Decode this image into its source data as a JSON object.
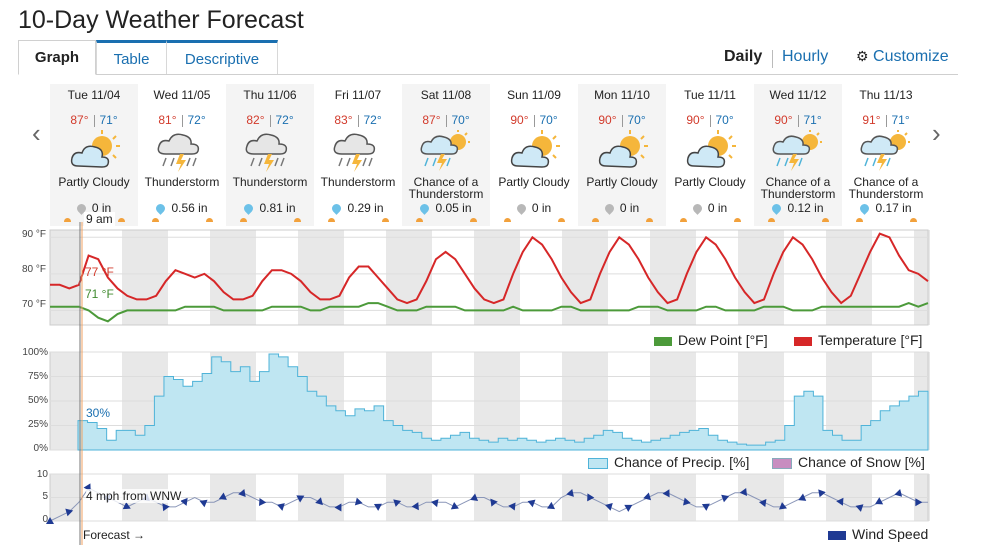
{
  "page_title": "10-Day Weather Forecast",
  "tabs": [
    {
      "label": "Graph"
    },
    {
      "label": "Table"
    },
    {
      "label": "Descriptive"
    }
  ],
  "view": {
    "daily": "Daily",
    "hourly": "Hourly",
    "customize": "Customize"
  },
  "days": [
    {
      "name": "Tue 11/04",
      "hi": "87°",
      "lo": "71°",
      "icon": "partly-cloudy-icon",
      "cond": "Partly Cloudy",
      "precip": "0 in",
      "drop": "gray"
    },
    {
      "name": "Wed 11/05",
      "hi": "81°",
      "lo": "72°",
      "icon": "thunderstorm-icon",
      "cond": "Thunderstorm",
      "precip": "0.56 in",
      "drop": "blue"
    },
    {
      "name": "Thu 11/06",
      "hi": "82°",
      "lo": "72°",
      "icon": "thunderstorm-icon",
      "cond": "Thunderstorm",
      "precip": "0.81 in",
      "drop": "blue"
    },
    {
      "name": "Fri 11/07",
      "hi": "83°",
      "lo": "72°",
      "icon": "thunderstorm-icon",
      "cond": "Thunderstorm",
      "precip": "0.29 in",
      "drop": "blue"
    },
    {
      "name": "Sat 11/08",
      "hi": "87°",
      "lo": "70°",
      "icon": "chance-thunderstorm-icon",
      "cond": "Chance of a Thunderstorm",
      "precip": "0.05 in",
      "drop": "blue"
    },
    {
      "name": "Sun 11/09",
      "hi": "90°",
      "lo": "70°",
      "icon": "partly-cloudy-icon",
      "cond": "Partly Cloudy",
      "precip": "0 in",
      "drop": "gray"
    },
    {
      "name": "Mon 11/10",
      "hi": "90°",
      "lo": "70°",
      "icon": "partly-cloudy-icon",
      "cond": "Partly Cloudy",
      "precip": "0 in",
      "drop": "gray"
    },
    {
      "name": "Tue 11/11",
      "hi": "90°",
      "lo": "70°",
      "icon": "partly-cloudy-icon",
      "cond": "Partly Cloudy",
      "precip": "0 in",
      "drop": "gray"
    },
    {
      "name": "Wed 11/12",
      "hi": "90°",
      "lo": "71°",
      "icon": "chance-thunderstorm-icon",
      "cond": "Chance of a Thunderstorm",
      "precip": "0.12 in",
      "drop": "blue"
    },
    {
      "name": "Thu 11/13",
      "hi": "91°",
      "lo": "71°",
      "icon": "chance-thunderstorm-icon",
      "cond": "Chance of a Thunderstorm",
      "precip": "0.17 in",
      "drop": "blue"
    }
  ],
  "cursor": {
    "time": "9 am",
    "temp": "77 °F",
    "dew": "71 °F",
    "precip": "30%",
    "wind": "4 mph from WNW",
    "forecast": "Forecast →"
  },
  "colors": {
    "temp": "#d62728",
    "dew": "#4c9a3a",
    "precip_fill": "#bfe6f2",
    "precip_line": "#4fb3d8",
    "wind": "#1f3a93",
    "link": "#1a6fb0"
  },
  "chart_data": [
    {
      "type": "line",
      "ylabel": "",
      "yticks": [
        "90 °F",
        "80 °F",
        "70 °F"
      ],
      "ylim": [
        66,
        92
      ],
      "series": [
        {
          "name": "Temperature [°F]",
          "values": [
            77,
            77,
            76,
            77,
            85,
            84,
            79,
            76,
            74,
            73,
            73,
            74,
            78,
            81,
            80,
            79,
            80,
            78,
            75,
            73,
            73,
            74,
            78,
            81,
            81,
            80,
            78,
            75,
            73,
            73,
            74,
            79,
            82,
            82,
            79,
            76,
            73,
            72,
            73,
            78,
            84,
            86,
            84,
            80,
            76,
            73,
            72,
            73,
            80,
            86,
            90,
            88,
            84,
            79,
            75,
            72,
            73,
            80,
            86,
            90,
            88,
            84,
            79,
            75,
            72,
            73,
            80,
            86,
            90,
            88,
            84,
            79,
            75,
            72,
            73,
            80,
            86,
            90,
            88,
            84,
            79,
            75,
            72,
            74,
            80,
            86,
            91,
            90,
            85,
            81,
            80,
            78
          ]
        },
        {
          "name": "Dew Point [°F]",
          "values": [
            71,
            71,
            71,
            71,
            70,
            68,
            67,
            69,
            70,
            70,
            70,
            70,
            70,
            70,
            71,
            71,
            71,
            71,
            70,
            70,
            70,
            70,
            70,
            71,
            71,
            71,
            71,
            70,
            70,
            71,
            71,
            71,
            71,
            72,
            72,
            71,
            70,
            70,
            70,
            71,
            71,
            71,
            71,
            70,
            70,
            70,
            70,
            70,
            71,
            70,
            70,
            70,
            70,
            71,
            71,
            70,
            70,
            70,
            70,
            70,
            70,
            71,
            71,
            71,
            70,
            70,
            70,
            70,
            71,
            71,
            70,
            70,
            70,
            70,
            71,
            71,
            71,
            70,
            70,
            70,
            71,
            71,
            71,
            71,
            71,
            71,
            71,
            71,
            71,
            72,
            71,
            72
          ]
        }
      ]
    },
    {
      "type": "area",
      "ylabel": "",
      "yticks": [
        "100%",
        "75%",
        "50%",
        "25%",
        "0%"
      ],
      "ylim": [
        0,
        100
      ],
      "series": [
        {
          "name": "Chance of Precip. [%]",
          "values": [
            30,
            28,
            22,
            10,
            20,
            20,
            15,
            25,
            55,
            75,
            72,
            65,
            70,
            78,
            95,
            90,
            80,
            85,
            70,
            80,
            98,
            95,
            85,
            75,
            60,
            55,
            45,
            40,
            35,
            42,
            40,
            45,
            30,
            25,
            20,
            18,
            12,
            10,
            12,
            15,
            18,
            12,
            10,
            8,
            12,
            10,
            12,
            10,
            8,
            10,
            12,
            10,
            8,
            12,
            15,
            20,
            18,
            12,
            10,
            8,
            10,
            12,
            15,
            18,
            20,
            22,
            15,
            10,
            8,
            6,
            5,
            5,
            8,
            10,
            25,
            55,
            60,
            55,
            20,
            15,
            10,
            10,
            25,
            30,
            40,
            45,
            50,
            55,
            60,
            60
          ]
        },
        {
          "name": "Chance of Snow [%]",
          "values": []
        }
      ]
    },
    {
      "type": "line",
      "ylabel": "",
      "yticks": [
        "10",
        "5",
        "0"
      ],
      "ylim": [
        0,
        10
      ],
      "series": [
        {
          "name": "Wind Speed",
          "values": [
            0,
            1,
            2,
            4,
            7,
            6,
            5,
            4,
            3,
            4,
            5,
            4,
            3,
            3,
            4,
            5,
            4,
            4,
            5,
            6,
            6,
            5,
            4,
            4,
            3,
            4,
            5,
            5,
            4,
            3,
            3,
            4,
            4,
            3,
            3,
            4,
            4,
            3,
            3,
            4,
            4,
            4,
            3,
            4,
            5,
            5,
            4,
            3,
            3,
            4,
            4,
            3,
            3,
            5,
            6,
            6,
            5,
            4,
            3,
            2,
            3,
            4,
            5,
            6,
            6,
            5,
            4,
            3,
            3,
            4,
            5,
            6,
            6,
            5,
            4,
            3,
            3,
            4,
            5,
            6,
            6,
            5,
            4,
            3,
            3,
            3,
            4,
            5,
            6,
            5,
            4,
            4
          ]
        }
      ]
    }
  ]
}
